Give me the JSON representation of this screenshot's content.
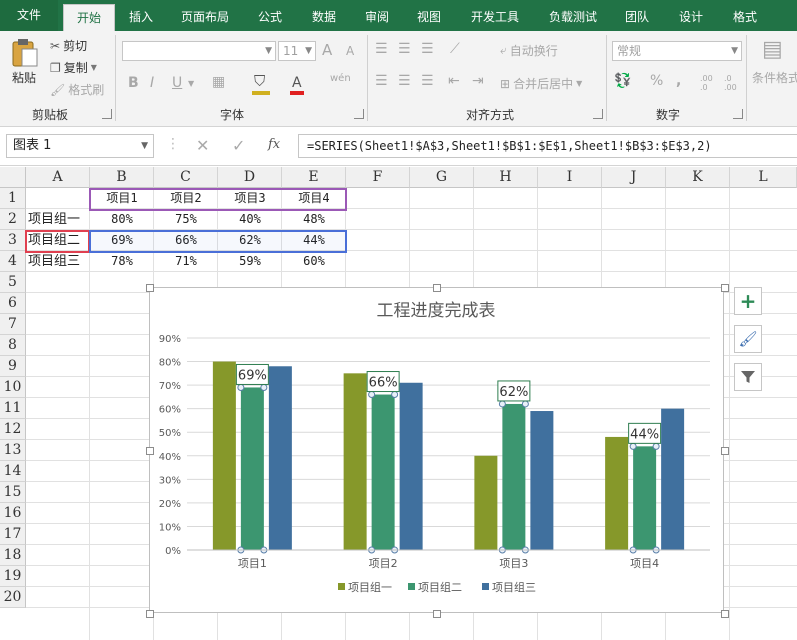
{
  "ribbon": {
    "tabs": [
      "文件",
      "开始",
      "插入",
      "页面布局",
      "公式",
      "数据",
      "审阅",
      "视图",
      "开发工具",
      "负载测试",
      "团队",
      "设计",
      "格式"
    ],
    "active_tab": "开始",
    "clipboard": {
      "paste": "粘贴",
      "cut": "剪切",
      "copy": "复制",
      "format_painter": "格式刷",
      "label": "剪贴板"
    },
    "font": {
      "size": "11",
      "bold": "B",
      "italic": "I",
      "underline": "U",
      "grow": "A",
      "shrink": "A",
      "font_color": "A",
      "phonetic": "wén",
      "label": "字体"
    },
    "alignment": {
      "wrap_text": "自动换行",
      "merge_center": "合并后居中",
      "label": "对齐方式"
    },
    "number": {
      "format": "常规",
      "percent": "%",
      "comma": ",",
      "increase_decimal": ".00 .0",
      "decrease_decimal": ".0 .00",
      "label": "数字"
    },
    "styles": {
      "conditional_format": "条件格式"
    }
  },
  "formula_bar": {
    "name_box": "图表 1",
    "fx": "fx",
    "formula": "=SERIES(Sheet1!$A$3,Sheet1!$B$1:$E$1,Sheet1!$B$3:$E$3,2)"
  },
  "sheet": {
    "columns": [
      "A",
      "B",
      "C",
      "D",
      "E",
      "F",
      "G",
      "H",
      "I",
      "J",
      "K",
      "L"
    ],
    "rows": [
      "1",
      "2",
      "3",
      "4",
      "5",
      "6",
      "7",
      "8",
      "9",
      "10",
      "11",
      "12",
      "13",
      "14",
      "15",
      "16",
      "17",
      "18",
      "19",
      "20"
    ],
    "header_row": [
      "项目1",
      "项目2",
      "项目3",
      "项目4"
    ],
    "data_rows": [
      {
        "label": "项目组一",
        "values": [
          "80%",
          "75%",
          "40%",
          "48%"
        ]
      },
      {
        "label": "项目组二",
        "values": [
          "69%",
          "66%",
          "62%",
          "44%"
        ]
      },
      {
        "label": "项目组三",
        "values": [
          "78%",
          "71%",
          "59%",
          "60%"
        ]
      }
    ]
  },
  "chart_data": {
    "type": "bar",
    "title": "工程进度完成表",
    "categories": [
      "项目1",
      "项目2",
      "项目3",
      "项目4"
    ],
    "series": [
      {
        "name": "项目组一",
        "values": [
          80,
          75,
          40,
          48
        ],
        "color": "#86982a"
      },
      {
        "name": "项目组二",
        "values": [
          69,
          66,
          62,
          44
        ],
        "color": "#3c9670",
        "data_labels": [
          "69%",
          "66%",
          "62%",
          "44%"
        ]
      },
      {
        "name": "项目组三",
        "values": [
          78,
          71,
          59,
          60
        ],
        "color": "#40709e"
      }
    ],
    "ylim": [
      0,
      90
    ],
    "yticks": [
      "0%",
      "10%",
      "20%",
      "30%",
      "40%",
      "50%",
      "60%",
      "70%",
      "80%",
      "90%"
    ],
    "grid": true,
    "legend_position": "bottom",
    "xlabel": "",
    "ylabel": ""
  },
  "chart_tools": [
    "chart-elements",
    "chart-styles",
    "chart-filters"
  ],
  "colors": {
    "excel_green": "#217346",
    "selected_series": "#3c9670"
  }
}
